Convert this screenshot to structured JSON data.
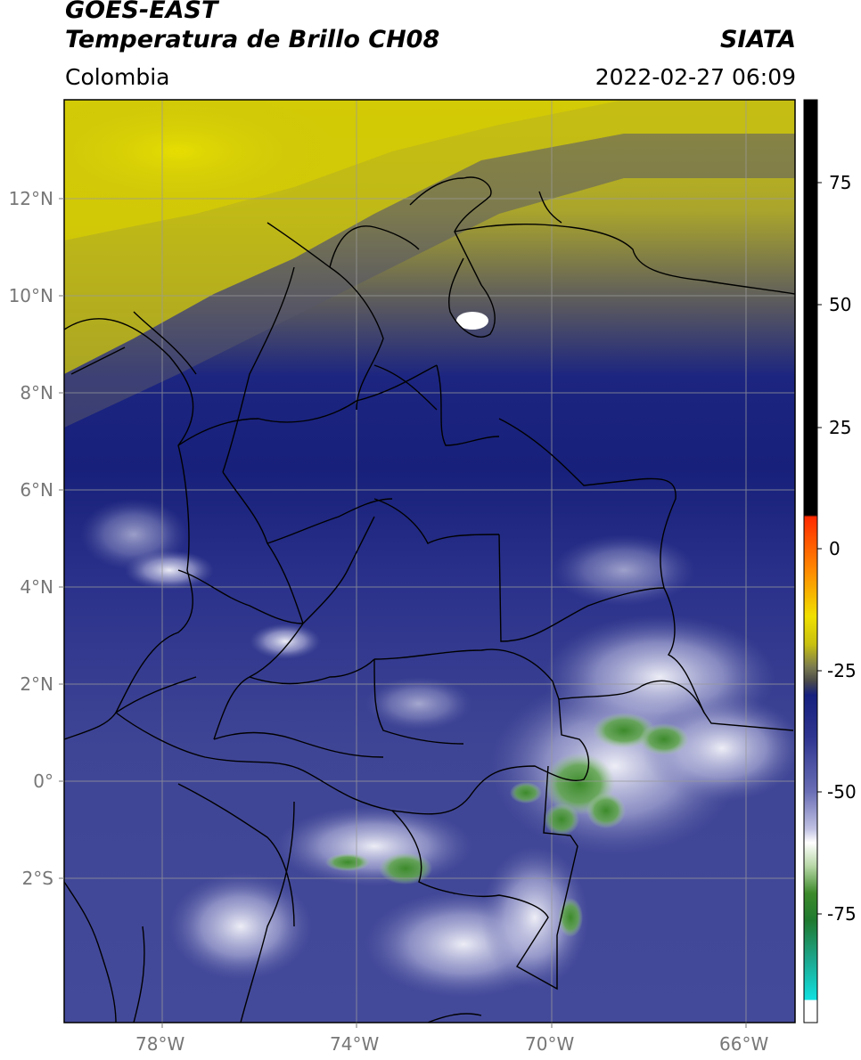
{
  "header": {
    "title_line1": "GOES-EAST",
    "title_line2": "Temperatura de Brillo CH08",
    "region": "Colombia",
    "brand": "SIATA",
    "timestamp": "2022-02-27 06:09"
  },
  "map": {
    "lat_labels": [
      "12°N",
      "10°N",
      "8°N",
      "6°N",
      "4°N",
      "2°N",
      "0°",
      "2°S"
    ],
    "lon_labels": [
      "78°W",
      "74°W",
      "70°W",
      "66°W"
    ]
  },
  "colorbar": {
    "ticks": [
      "75",
      "50",
      "25",
      "0",
      "-25",
      "-50",
      "-75"
    ]
  },
  "colors": {
    "cold_yellow": "#c8c010",
    "navy": "#141e7a",
    "slate_blue": "#4a4f9a",
    "cloud_white": "#f4f4fa",
    "cloud_green": "#3f8c2c"
  }
}
